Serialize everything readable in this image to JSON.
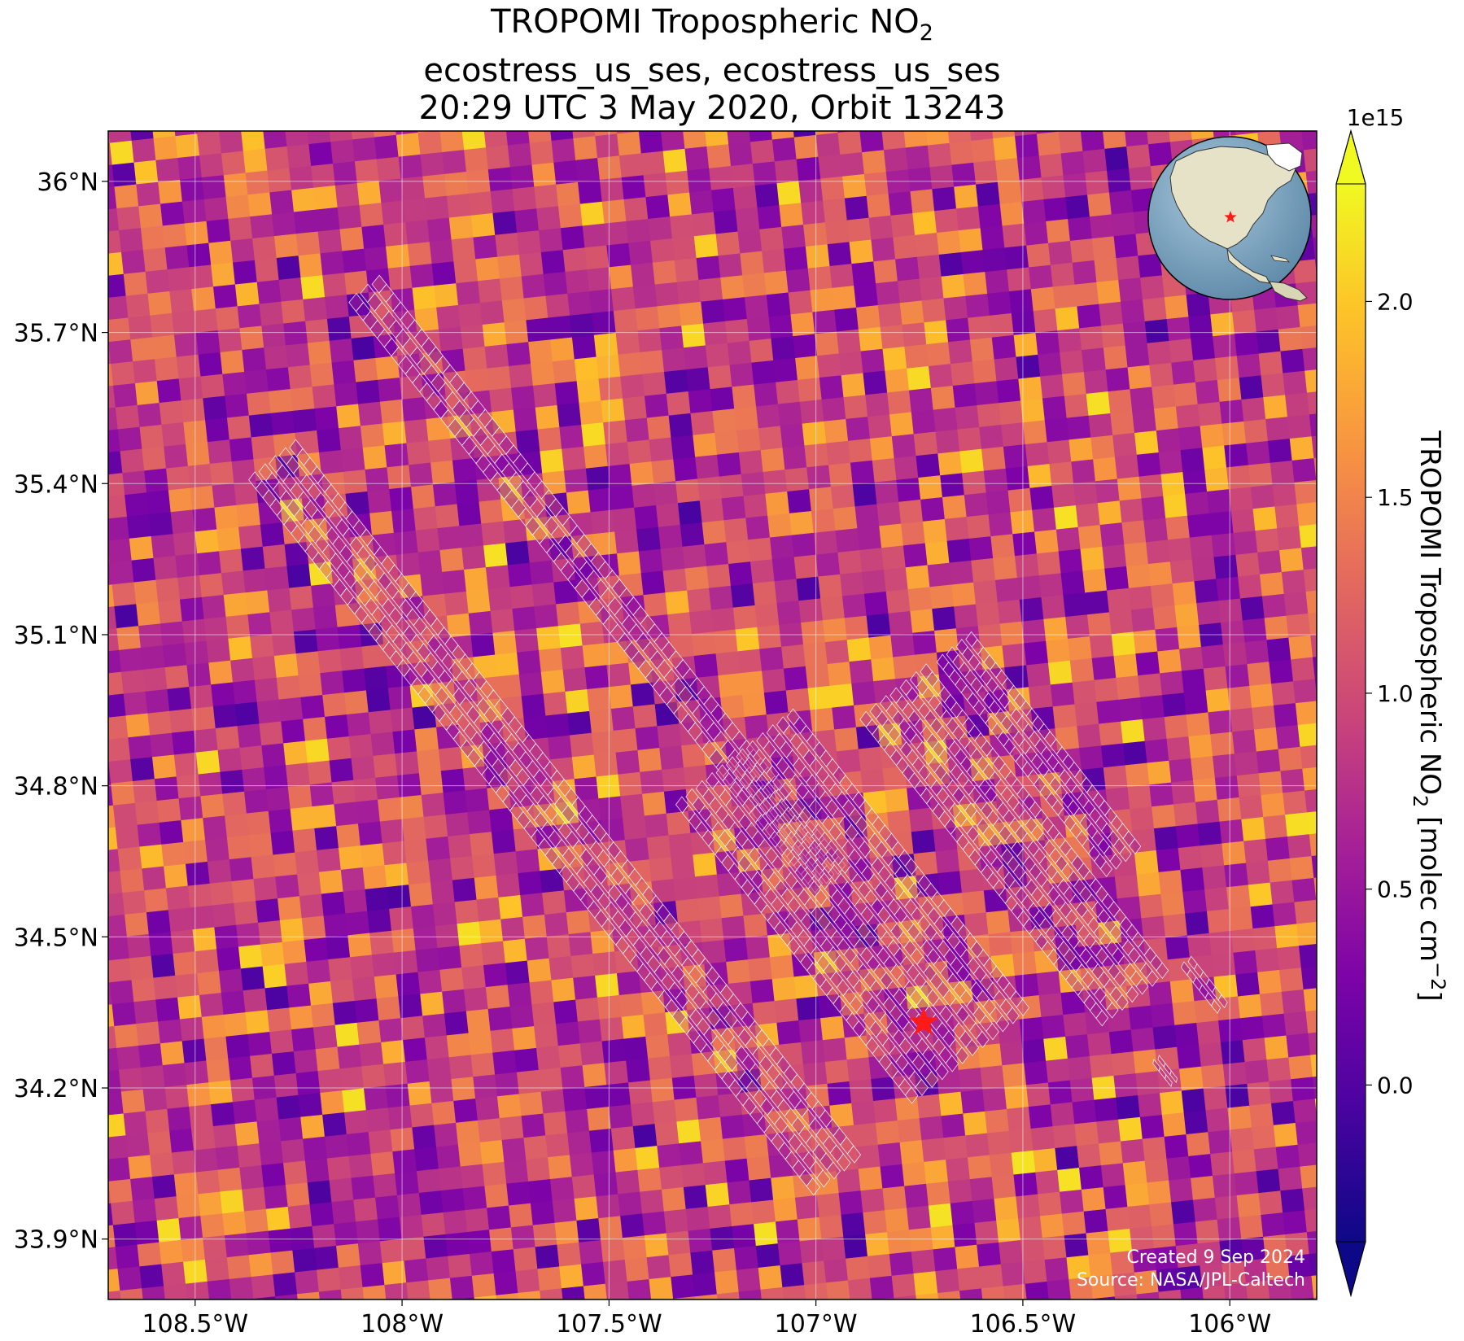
{
  "title": {
    "line1_main": "TROPOMI Tropospheric NO",
    "line1_sub": "2",
    "line2": "ecostress_us_ses, ecostress_us_ses",
    "line3": "20:29 UTC 3 May 2020, Orbit 13243"
  },
  "map": {
    "lon_range": [
      -108.71,
      -105.79
    ],
    "lat_range": [
      33.78,
      36.1
    ],
    "lat_ticks": [
      {
        "value": 36.0,
        "label": "36°N"
      },
      {
        "value": 35.7,
        "label": "35.7°N"
      },
      {
        "value": 35.4,
        "label": "35.4°N"
      },
      {
        "value": 35.1,
        "label": "35.1°N"
      },
      {
        "value": 34.8,
        "label": "34.8°N"
      },
      {
        "value": 34.5,
        "label": "34.5°N"
      },
      {
        "value": 34.2,
        "label": "34.2°N"
      },
      {
        "value": 33.9,
        "label": "33.9°N"
      }
    ],
    "lon_ticks": [
      {
        "value": -108.5,
        "label": "108.5°W"
      },
      {
        "value": -108.0,
        "label": "108°W"
      },
      {
        "value": -107.5,
        "label": "107.5°W"
      },
      {
        "value": -107.0,
        "label": "107°W"
      },
      {
        "value": -106.5,
        "label": "106.5°W"
      },
      {
        "value": -106.0,
        "label": "106°W"
      }
    ],
    "site_marker": {
      "lon": -106.74,
      "lat": 34.33,
      "color": "#ff1a1a"
    },
    "background_cmap": "plasma",
    "footprint_color": "#ffffff"
  },
  "colorbar": {
    "label_main": "TROPOMI Tropospheric NO",
    "label_sub": "2",
    "label_units": " [molec cm",
    "label_exp": "−2",
    "label_close": "]",
    "scale_label": "1e15",
    "min": -0.4,
    "max": 2.3,
    "extend": "both",
    "ticks": [
      {
        "value": 0.0,
        "label": "0.0"
      },
      {
        "value": 0.5,
        "label": "0.5"
      },
      {
        "value": 1.0,
        "label": "1.0"
      },
      {
        "value": 1.5,
        "label": "1.5"
      },
      {
        "value": 2.0,
        "label": "2.0"
      }
    ]
  },
  "credits": {
    "created": "Created 9 Sep 2024",
    "source": "Source: NASA/JPL-Caltech"
  },
  "inset": {
    "marker_color": "#ff1a1a"
  }
}
